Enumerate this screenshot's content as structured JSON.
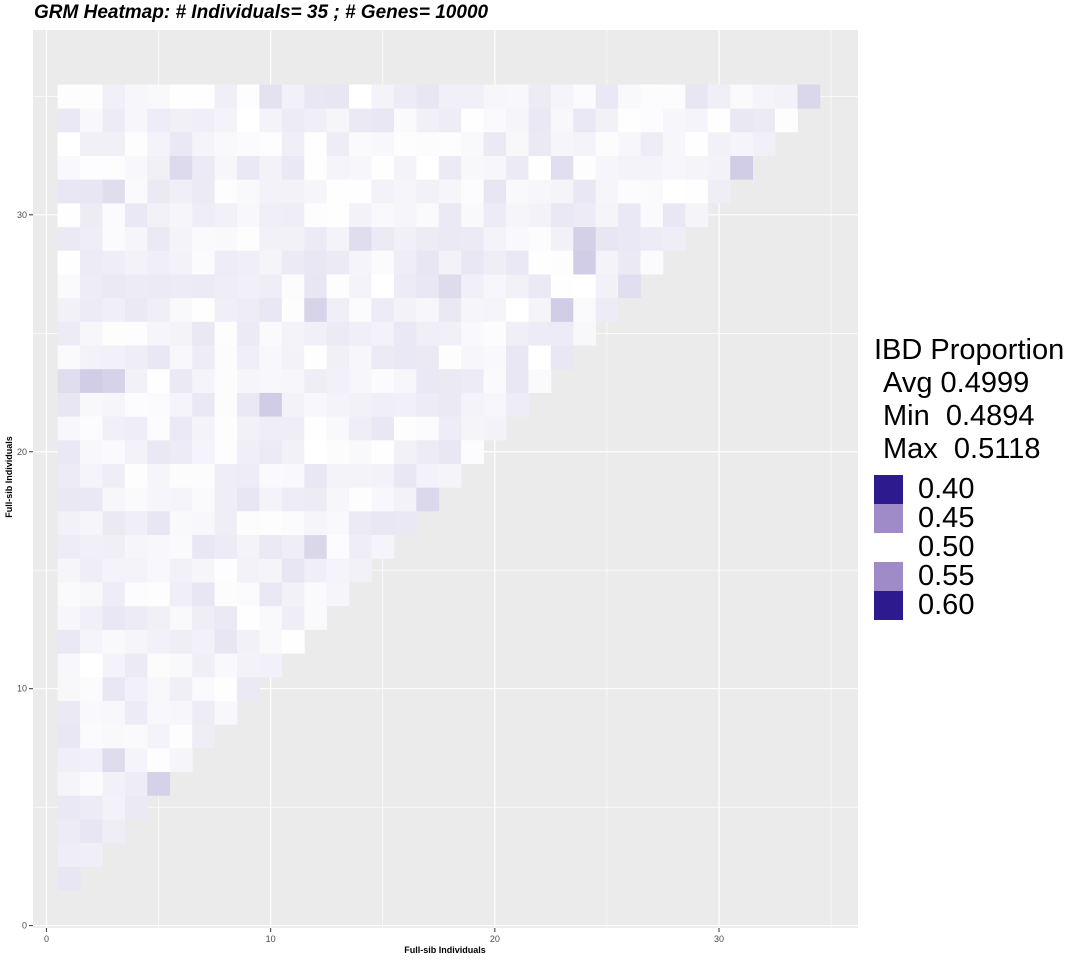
{
  "chart_data": {
    "type": "heatmap",
    "title": "GRM Heatmap: # Individuals= 35 ; # Genes= 10000",
    "xlabel": "Full-sib Individuals",
    "ylabel": "Full-sib Individuals",
    "n_individuals": 35,
    "xlim": [
      -0.6,
      36.2
    ],
    "ylim": [
      -0.1,
      37.8
    ],
    "x_ticks": [
      0,
      10,
      20,
      30
    ],
    "y_ticks": [
      0,
      10,
      20,
      30
    ],
    "grid": true,
    "shape": "upper-triangle",
    "legend": {
      "title": "IBD Proportion",
      "stats": [
        {
          "label": "Avg",
          "value": "0.4999"
        },
        {
          "label": "Min",
          "value": "0.4894"
        },
        {
          "label": "Max",
          "value": "0.5118"
        }
      ],
      "breaks": [
        0.4,
        0.45,
        0.5,
        0.55,
        0.6
      ],
      "break_labels": [
        "0.40",
        "0.45",
        "0.50",
        "0.55",
        "0.60"
      ],
      "break_colors": [
        "#2d1a8e",
        "#9f8bc8",
        "#ffffff",
        "#9f8bc8",
        "#2d1a8e"
      ],
      "placement": "right"
    },
    "color_scale": {
      "low": "#2d1a8e",
      "mid": "#ffffff",
      "high": "#2d1a8e",
      "midpoint": 0.5,
      "limits": [
        0.4,
        0.6
      ]
    },
    "panel_background": "#ebebeb",
    "grid_color": "#ffffff"
  }
}
